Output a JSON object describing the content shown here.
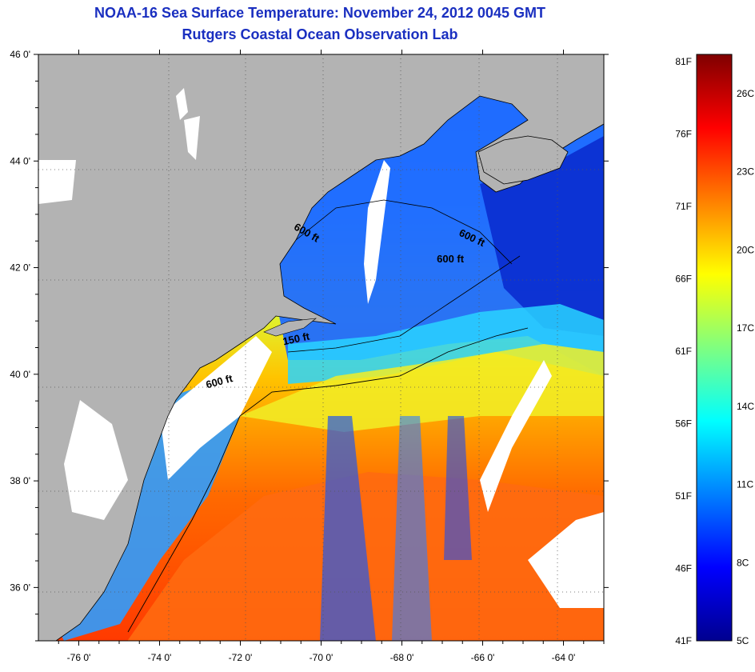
{
  "header": {
    "title": "NOAA-16 Sea Surface Temperature:  November 24, 2012 0045 GMT",
    "subtitle": "Rutgers Coastal Ocean Observation Lab"
  },
  "map": {
    "lon_range": [
      -77.0,
      -63.0
    ],
    "lat_range": [
      35.0,
      46.0
    ],
    "lon_ticks": [
      "-76 0'",
      "-74 0'",
      "-72 0'",
      "-70 0'",
      "-68 0'",
      "-66 0'",
      "-64 0'"
    ],
    "lat_ticks": [
      "46 0'",
      "44 0'",
      "42 0'",
      "40 0'",
      "38 0'",
      "36 0'"
    ],
    "gridlines": "dotted",
    "land_color": "#b3b3b3",
    "cloud_color": "#ffffff",
    "contour_labels": [
      {
        "text": "600 ft",
        "lon": -70.4,
        "lat": 42.6
      },
      {
        "text": "600 ft",
        "lon": -66.3,
        "lat": 42.5
      },
      {
        "text": "600 ft",
        "lon": -66.8,
        "lat": 42.1
      },
      {
        "text": "150 ft",
        "lon": -70.6,
        "lat": 40.6
      },
      {
        "text": "600 ft",
        "lon": -72.5,
        "lat": 39.8
      }
    ]
  },
  "colorbar": {
    "fahrenheit_labels": [
      "81F",
      "76F",
      "71F",
      "66F",
      "61F",
      "56F",
      "51F",
      "46F",
      "41F"
    ],
    "celsius_labels": [
      "26C",
      "23C",
      "20C",
      "17C",
      "14C",
      "11C",
      "8C",
      "5C"
    ],
    "colormap": "jet",
    "range_c": [
      5,
      27.5
    ]
  }
}
